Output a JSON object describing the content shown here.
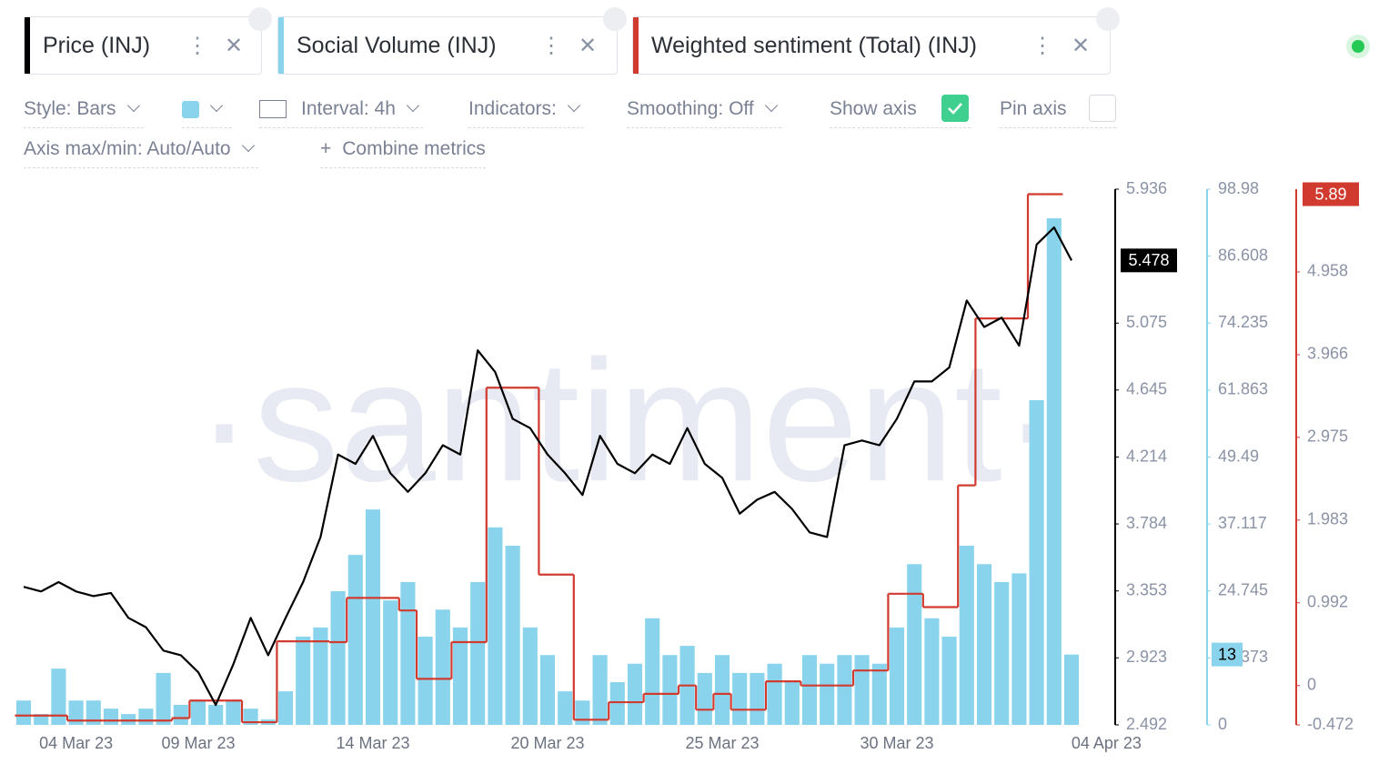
{
  "toolbar": {
    "controls": [
      "Style: Bars",
      "Interval: 4h",
      "Indicators:",
      "Smoothing: Off",
      "Show axis",
      "Pin axis",
      "Axis max/min: Auto/Auto",
      "Combine metrics"
    ]
  },
  "watermark": "·santiment·",
  "chart_data": {
    "type": "combo",
    "categories": [
      null,
      null,
      null,
      "04 Mar 23",
      null,
      null,
      null,
      null,
      null,
      null,
      "09 Mar 23",
      null,
      null,
      null,
      null,
      null,
      null,
      null,
      null,
      null,
      "14 Mar 23",
      null,
      null,
      null,
      null,
      null,
      null,
      null,
      null,
      null,
      "20 Mar 23",
      null,
      null,
      null,
      null,
      null,
      null,
      null,
      null,
      null,
      "25 Mar 23",
      null,
      null,
      null,
      null,
      null,
      null,
      null,
      null,
      null,
      "30 Mar 23",
      null,
      null,
      null,
      null,
      null,
      null,
      null,
      null,
      null,
      null,
      null,
      "04 Apr 23"
    ],
    "ylim": [
      2.492,
      5.936
    ],
    "yticks": [
      2.492,
      2.923,
      3.353,
      3.784,
      4.214,
      4.645,
      5.075,
      5.936
    ],
    "y2lim": [
      0,
      98.98
    ],
    "y2ticks": [
      0,
      12.373,
      24.745,
      37.117,
      49.49,
      61.863,
      74.235,
      86.608,
      98.98
    ],
    "y3lim": [
      -0.472,
      5.95
    ],
    "y3ticks": [
      -0.472,
      0,
      0.992,
      1.983,
      2.975,
      3.966,
      4.958
    ],
    "series": [
      {
        "name": "Price (INJ)",
        "type": "line",
        "color": "#000000",
        "current_label": "5.478",
        "values": [
          3.38,
          3.35,
          3.41,
          3.35,
          3.32,
          3.34,
          3.18,
          3.12,
          2.97,
          2.94,
          2.83,
          2.62,
          2.88,
          3.18,
          2.94,
          3.18,
          3.41,
          3.7,
          4.23,
          4.17,
          4.35,
          4.11,
          3.99,
          4.11,
          4.29,
          4.23,
          4.9,
          4.76,
          4.46,
          4.4,
          4.23,
          4.11,
          3.97,
          4.35,
          4.17,
          4.11,
          4.23,
          4.17,
          4.4,
          4.17,
          4.08,
          3.85,
          3.94,
          3.99,
          3.88,
          3.73,
          3.7,
          4.29,
          4.32,
          4.29,
          4.46,
          4.7,
          4.7,
          4.79,
          5.22,
          5.05,
          5.11,
          4.93,
          5.58,
          5.69,
          5.478,
          null,
          null
        ]
      },
      {
        "name": "Social Volume (INJ)",
        "type": "bar",
        "axis": "y2",
        "color": "#89d4ec",
        "current_label": "13",
        "values": [
          4.5,
          2,
          10.4,
          4.5,
          4.5,
          3,
          2,
          3,
          9.6,
          3.7,
          4.5,
          3.7,
          4.5,
          3,
          1,
          6.2,
          16.3,
          18,
          24.7,
          31.4,
          39.8,
          23,
          26.4,
          16.3,
          21.3,
          18,
          26.4,
          36.5,
          33.1,
          18,
          12.9,
          6.2,
          4.5,
          12.9,
          7.9,
          11.3,
          19.7,
          12.9,
          14.6,
          9.6,
          12.9,
          9.6,
          9.6,
          11.3,
          7.9,
          12.9,
          11.3,
          12.9,
          12.9,
          11.3,
          18,
          29.7,
          19.7,
          16.3,
          33.1,
          29.7,
          26.4,
          28,
          60,
          93.6,
          13,
          null,
          null
        ]
      },
      {
        "name": "Weighted sentiment (Total) (INJ)",
        "type": "step",
        "axis": "y3",
        "color": "#d13a2e",
        "current_label": "5.89",
        "values": [
          -0.36,
          -0.36,
          -0.36,
          -0.42,
          -0.42,
          -0.42,
          -0.42,
          -0.42,
          -0.42,
          -0.39,
          -0.18,
          -0.18,
          -0.18,
          -0.44,
          -0.44,
          0.53,
          0.53,
          0.53,
          0.52,
          1.05,
          1.05,
          1.05,
          0.9,
          0.08,
          0.08,
          0.52,
          0.52,
          3.57,
          3.57,
          3.57,
          1.33,
          1.33,
          -0.41,
          -0.41,
          -0.2,
          -0.2,
          -0.1,
          -0.1,
          0,
          -0.29,
          -0.1,
          -0.29,
          -0.29,
          0.05,
          0.05,
          0,
          0,
          0,
          0.18,
          0.18,
          1.1,
          1.1,
          0.94,
          0.94,
          2.4,
          4.4,
          4.4,
          4.4,
          5.89,
          5.89,
          null,
          null,
          null
        ]
      }
    ]
  }
}
